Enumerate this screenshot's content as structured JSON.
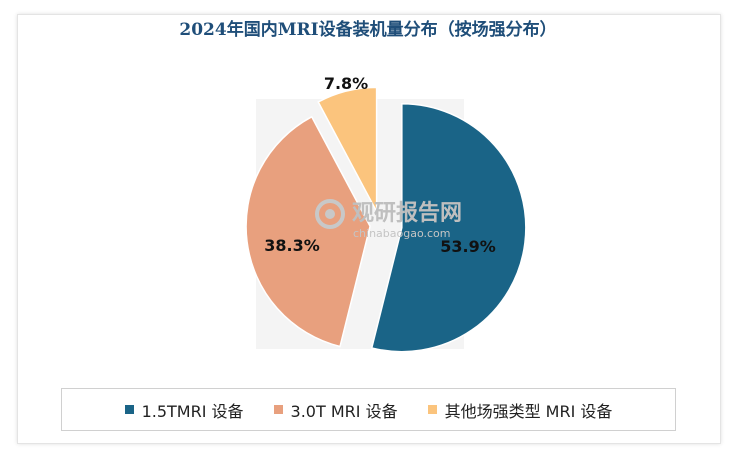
{
  "chart_data": {
    "type": "pie",
    "title": "2024年国内MRI设备装机量分布（按场强分布）",
    "slices": [
      {
        "name": "1.5TMRI 设备",
        "value": 53.9,
        "label": "53.9%",
        "color": "#1a6487"
      },
      {
        "name": "3.0T MRI 设备",
        "value": 38.3,
        "label": "38.3%",
        "color": "#e8a07e"
      },
      {
        "name": "其他场强类型 MRI 设备",
        "value": 7.8,
        "label": "7.8%",
        "color": "#fbc47d"
      }
    ],
    "legend_position": "bottom"
  },
  "watermark": {
    "text": "观研报告网",
    "sub": "chinabaogao.com"
  }
}
